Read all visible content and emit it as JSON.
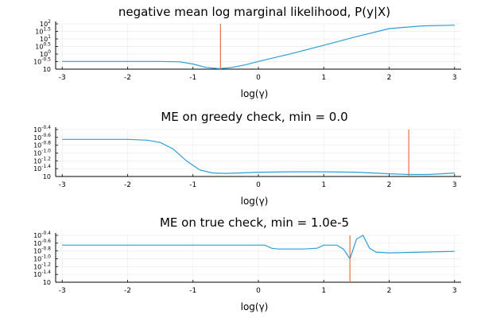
{
  "chart_data": [
    {
      "type": "line",
      "title": "negative mean log marginal likelihood, P(y|X)",
      "xlabel": "log(γ)",
      "ylabel": "",
      "yscale": "log",
      "xlim": [
        -3.1,
        3.1
      ],
      "xticks": [
        "-3",
        "-2",
        "-1",
        "0",
        "1",
        "2",
        "3"
      ],
      "yticks": [
        {
          "base": "10",
          "exp": "2"
        },
        {
          "base": "10",
          "exp": "1.5"
        },
        {
          "base": "10",
          "exp": "1"
        },
        {
          "base": "10",
          "exp": "0.5"
        },
        {
          "base": "10",
          "exp": "0"
        },
        {
          "base": "10",
          "exp": "-0.5"
        },
        {
          "base": "10",
          "exp": ""
        }
      ],
      "grid": true,
      "series": [
        {
          "x": [
            -3,
            -2.5,
            -2,
            -1.5,
            -1.2,
            -1,
            -0.8,
            -0.6,
            -0.4,
            -0.2,
            0,
            0.5,
            1,
            1.5,
            2,
            2.5,
            3
          ],
          "y": [
            -0.1,
            -0.1,
            -0.1,
            -0.1,
            -0.12,
            -0.25,
            -0.45,
            -0.52,
            -0.45,
            -0.3,
            -0.1,
            0.35,
            0.85,
            1.35,
            1.82,
            1.98,
            2.02
          ],
          "color": "#2a9fd6"
        }
      ],
      "vline": {
        "x": -0.58,
        "color": "#e36f47"
      }
    },
    {
      "type": "line",
      "title": "ME on greedy check, min = 0.0",
      "xlabel": "log(γ)",
      "ylabel": "",
      "xlim": [
        -3.1,
        3.1
      ],
      "xticks": [
        "-3",
        "-2",
        "-1",
        "0",
        "1",
        "2",
        "3"
      ],
      "yticks": [
        {
          "base": "10",
          "exp": "-0.4"
        },
        {
          "base": "10",
          "exp": "-0.6"
        },
        {
          "base": "10",
          "exp": "-0.8"
        },
        {
          "base": "10",
          "exp": "-1.0"
        },
        {
          "base": "10",
          "exp": "-1.2"
        },
        {
          "base": "10",
          "exp": "-1.4"
        },
        {
          "base": "10",
          "exp": ""
        }
      ],
      "grid": true,
      "series": [
        {
          "x": [
            -3,
            -2.5,
            -2,
            -1.7,
            -1.5,
            -1.3,
            -1.1,
            -0.9,
            -0.7,
            -0.5,
            -0.3,
            0,
            0.5,
            1,
            1.5,
            2,
            2.3,
            2.6,
            2.8,
            3
          ],
          "y": [
            -0.6,
            -0.6,
            -0.6,
            -0.62,
            -0.68,
            -0.85,
            -1.15,
            -1.38,
            -1.46,
            -1.47,
            -1.46,
            -1.44,
            -1.43,
            -1.43,
            -1.44,
            -1.48,
            -1.5,
            -1.5,
            -1.48,
            -1.46
          ],
          "color": "#2a9fd6"
        }
      ],
      "vline": {
        "x": 2.3,
        "color": "#e36f47"
      }
    },
    {
      "type": "line",
      "title": "ME on true check, min = 1.0e-5",
      "xlabel": "log(γ)",
      "ylabel": "",
      "xlim": [
        -3.1,
        3.1
      ],
      "xticks": [
        "-3",
        "-2",
        "-1",
        "0",
        "1",
        "2",
        "3"
      ],
      "yticks": [
        {
          "base": "10",
          "exp": "-0.4"
        },
        {
          "base": "10",
          "exp": "-0.6"
        },
        {
          "base": "10",
          "exp": "-0.8"
        },
        {
          "base": "10",
          "exp": "-1.0"
        },
        {
          "base": "10",
          "exp": "-1.2"
        },
        {
          "base": "10",
          "exp": "-1.4"
        },
        {
          "base": "10",
          "exp": ""
        }
      ],
      "grid": true,
      "series": [
        {
          "x": [
            -3,
            -2.5,
            -2,
            -1.5,
            -1,
            -0.5,
            0,
            0.1,
            0.2,
            0.3,
            0.5,
            0.7,
            0.9,
            1.0,
            1.2,
            1.3,
            1.4,
            1.5,
            1.6,
            1.7,
            1.8,
            2,
            2.5,
            3
          ],
          "y": [
            -0.6,
            -0.6,
            -0.6,
            -0.6,
            -0.6,
            -0.6,
            -0.6,
            -0.6,
            -0.68,
            -0.7,
            -0.7,
            -0.7,
            -0.68,
            -0.6,
            -0.6,
            -0.7,
            -0.95,
            -0.45,
            -0.35,
            -0.68,
            -0.78,
            -0.8,
            -0.78,
            -0.76
          ],
          "color": "#2a9fd6"
        }
      ],
      "vline": {
        "x": 1.4,
        "color": "#e36f47"
      }
    }
  ]
}
